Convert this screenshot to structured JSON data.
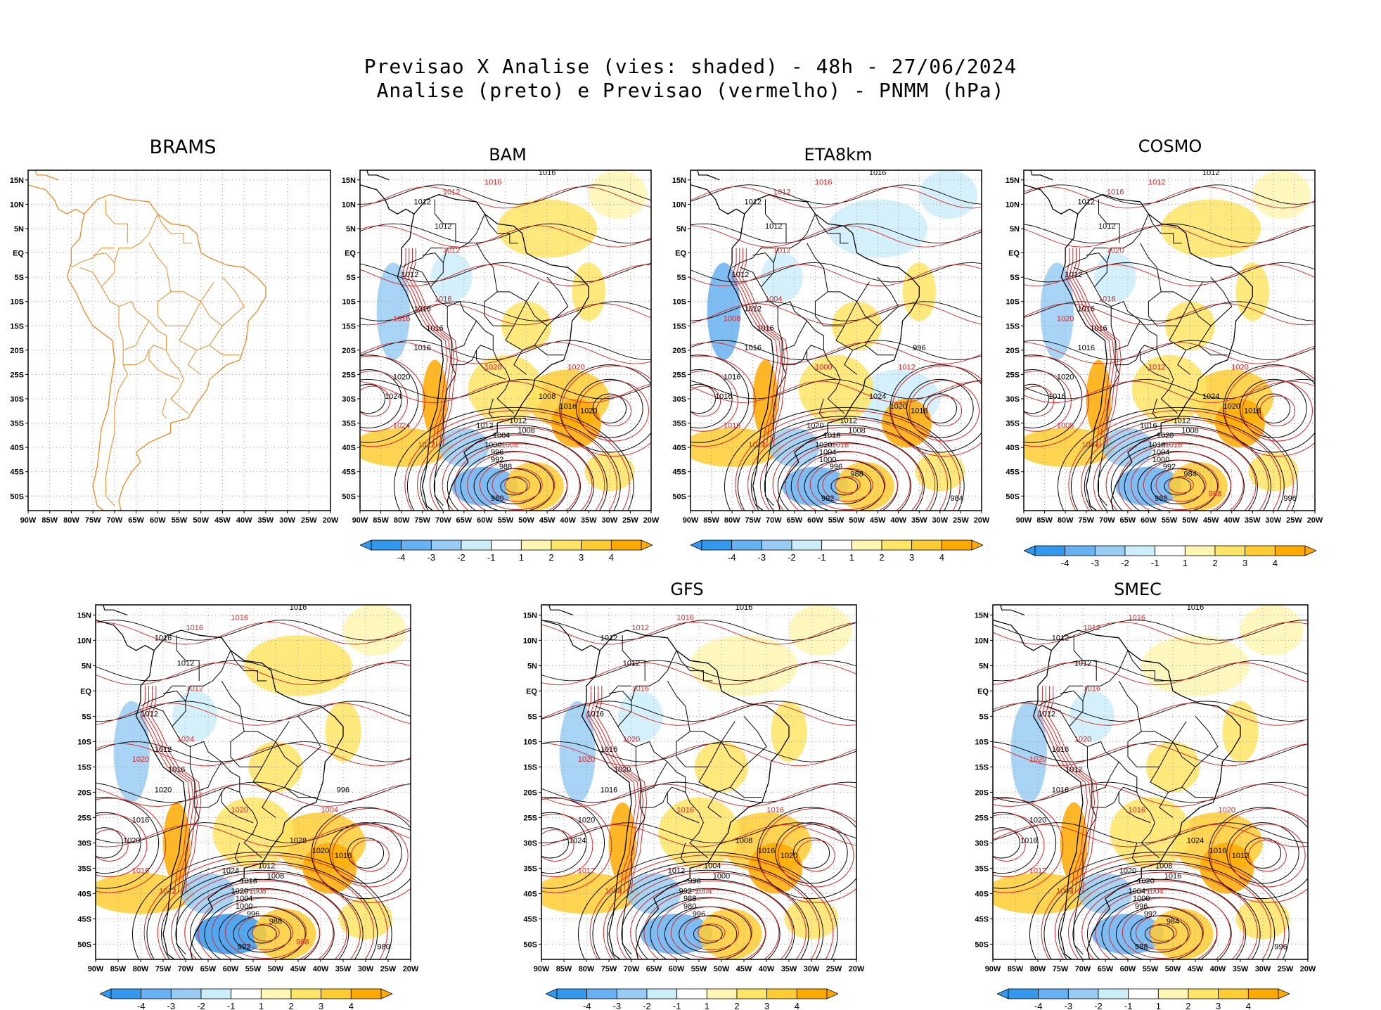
{
  "header": {
    "title_line1": "Previsao X Analise (vies: shaded) - 48h - 27/06/2024",
    "title_line2": "Analise (preto) e Previsao (vermelho) - PNMM (hPa)"
  },
  "axes": {
    "lat_labels": [
      "15N",
      "10N",
      "5N",
      "EQ",
      "5S",
      "10S",
      "15S",
      "20S",
      "25S",
      "30S",
      "35S",
      "40S",
      "45S",
      "50S"
    ],
    "lon_labels": [
      "90W",
      "85W",
      "80W",
      "75W",
      "70W",
      "65W",
      "60W",
      "55W",
      "50W",
      "45W",
      "40W",
      "35W",
      "30W",
      "25W",
      "20W"
    ]
  },
  "colorbar": {
    "labels": [
      "-4",
      "-3",
      "-2",
      "-1",
      "1",
      "2",
      "3",
      "4"
    ],
    "colors": [
      "#3399ee",
      "#66b2f2",
      "#99ccf5",
      "#cceefa",
      "#ffffff",
      "#fff6b3",
      "#ffe566",
      "#ffcc33",
      "#ffaa00"
    ]
  },
  "colors": {
    "analysis": "#000000",
    "forecast": "#dd2222",
    "coast_brams": "#ee8822",
    "grid": "#999999"
  },
  "panels": [
    {
      "id": "brams",
      "title": "BRAMS",
      "has_contours": false,
      "has_colorbar": false,
      "black_labels": [],
      "red_labels": []
    },
    {
      "id": "bam",
      "title": "BAM",
      "has_contours": true,
      "has_colorbar": true,
      "black_labels": [
        "1016",
        "1012",
        "1012",
        "1016",
        "1012",
        "1016",
        "1024",
        "1020",
        "1016",
        "1012",
        "1008",
        "1016",
        "1020",
        "1012",
        "1008",
        "1004",
        "1000",
        "996",
        "992",
        "988",
        "980"
      ],
      "red_labels": [
        "1016",
        "1012",
        "1012",
        "1016",
        "1016",
        "1020",
        "1024",
        "1012",
        "1008",
        "1020"
      ]
    },
    {
      "id": "eta8km",
      "title": "ETA8km",
      "has_contours": true,
      "has_colorbar": true,
      "black_labels": [
        "1016",
        "1012",
        "1012",
        "1012",
        "1012",
        "1016",
        "1016",
        "1016",
        "1016",
        "1020",
        "1024",
        "1020",
        "1016",
        "1012",
        "1008",
        "1016",
        "1020",
        "1004",
        "1000",
        "996",
        "992",
        "988",
        "984",
        "996"
      ],
      "red_labels": [
        "1016",
        "1012",
        "1012",
        "1008",
        "1004",
        "1000",
        "1016",
        "1020",
        "1016",
        "1012"
      ]
    },
    {
      "id": "cosmo",
      "title": "COSMO",
      "has_contours": true,
      "has_colorbar": true,
      "black_labels": [
        "1012",
        "1012",
        "1012",
        "1016",
        "1012",
        "1016",
        "1016",
        "1020",
        "1016",
        "1016",
        "1024",
        "1020",
        "1016",
        "1012",
        "1008",
        "1020",
        "1016",
        "1004",
        "1000",
        "992",
        "988",
        "984",
        "996"
      ],
      "red_labels": [
        "1012",
        "1016",
        "1020",
        "1020",
        "1016",
        "1012",
        "1008",
        "1004",
        "1016",
        "1020",
        "988"
      ]
    },
    {
      "id": "ecmwf",
      "title": "",
      "has_contours": true,
      "has_colorbar": true,
      "black_labels": [
        "1016",
        "1016",
        "1012",
        "1012",
        "1012",
        "1016",
        "1020",
        "1016",
        "1020",
        "1024",
        "1028",
        "1020",
        "1016",
        "1012",
        "1008",
        "1016",
        "1020",
        "1004",
        "1000",
        "996",
        "992",
        "988",
        "980",
        "996"
      ],
      "red_labels": [
        "1016",
        "1016",
        "1012",
        "1020",
        "1024",
        "1020",
        "1016",
        "1012",
        "1008",
        "1004",
        "988"
      ]
    },
    {
      "id": "gfs",
      "title": "GFS",
      "has_contours": true,
      "has_colorbar": true,
      "black_labels": [
        "1016",
        "1012",
        "1012",
        "1016",
        "1016",
        "1020",
        "1024",
        "1020",
        "1016",
        "1012",
        "1008",
        "1016",
        "1020",
        "1004",
        "1000",
        "996",
        "992",
        "988",
        "980",
        "996"
      ],
      "red_labels": [
        "1016",
        "1012",
        "1016",
        "1020",
        "1020",
        "1016",
        "1012",
        "1008",
        "1004",
        "1016"
      ]
    },
    {
      "id": "smec",
      "title": "SMEC",
      "has_contours": true,
      "has_colorbar": true,
      "black_labels": [
        "1016",
        "1012",
        "1012",
        "1016",
        "1012",
        "1012",
        "1016",
        "1020",
        "1016",
        "1020",
        "1024",
        "1016",
        "1012",
        "1008",
        "1016",
        "1020",
        "1004",
        "1000",
        "996",
        "992",
        "988",
        "984",
        "996"
      ],
      "red_labels": [
        "1016",
        "1012",
        "1016",
        "1020",
        "1020",
        "1016",
        "1012",
        "1008",
        "1004",
        "1020"
      ]
    }
  ]
}
